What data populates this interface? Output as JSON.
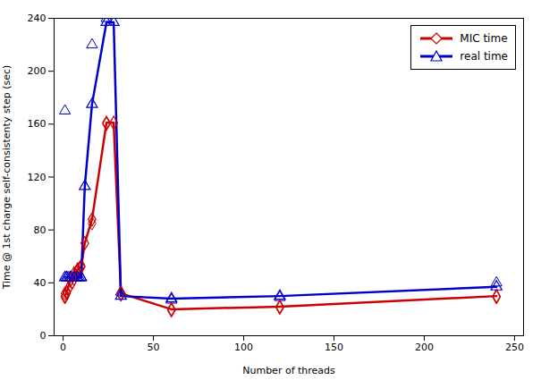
{
  "chart_data": {
    "type": "line",
    "xlabel": "Number of threads",
    "ylabel": "Time @ 1st charge self-consistenty step (sec)",
    "xlim": [
      -5,
      255
    ],
    "ylim": [
      0,
      240
    ],
    "xticks": [
      0,
      50,
      100,
      150,
      200,
      250
    ],
    "yticks": [
      0,
      40,
      80,
      120,
      160,
      200,
      240
    ],
    "grid": false,
    "legend": "upper right",
    "series": [
      {
        "name": "MIC time",
        "type": "line",
        "color": "#cc0000",
        "marker": "diamond",
        "x": [
          1,
          2,
          4,
          6,
          8,
          10,
          12,
          16,
          24,
          28,
          32,
          60,
          120,
          240
        ],
        "values": [
          30,
          33,
          42,
          47,
          50,
          52,
          70,
          88,
          161,
          161,
          32,
          20,
          22,
          30
        ]
      },
      {
        "name": "real time",
        "type": "line",
        "color": "#0000cc",
        "marker": "triangle",
        "x": [
          1,
          2,
          4,
          6,
          8,
          10,
          12,
          16,
          24,
          28,
          32,
          60,
          120,
          240
        ],
        "values": [
          44,
          44,
          44,
          44,
          44,
          44,
          113,
          175,
          237,
          237,
          30,
          28,
          30,
          37
        ]
      },
      {
        "type": "scatter",
        "color": "#cc0000",
        "marker": "diamond",
        "x": [
          1,
          1,
          2,
          3,
          4,
          5,
          6,
          7,
          8,
          9,
          10,
          16,
          24,
          32,
          60,
          120,
          240
        ],
        "values": [
          29,
          32,
          32,
          36,
          38,
          40,
          43,
          46,
          49,
          51,
          53,
          85,
          160,
          31,
          19,
          21,
          29
        ]
      },
      {
        "type": "scatter",
        "color": "#0000cc",
        "marker": "triangle",
        "x": [
          1,
          2,
          3,
          4,
          5,
          6,
          7,
          8,
          9,
          10,
          16,
          24,
          32,
          60,
          120,
          240
        ],
        "values": [
          170,
          44,
          44,
          44,
          44,
          44,
          44,
          44,
          44,
          44,
          220,
          240,
          33,
          27,
          29,
          40
        ]
      }
    ]
  }
}
